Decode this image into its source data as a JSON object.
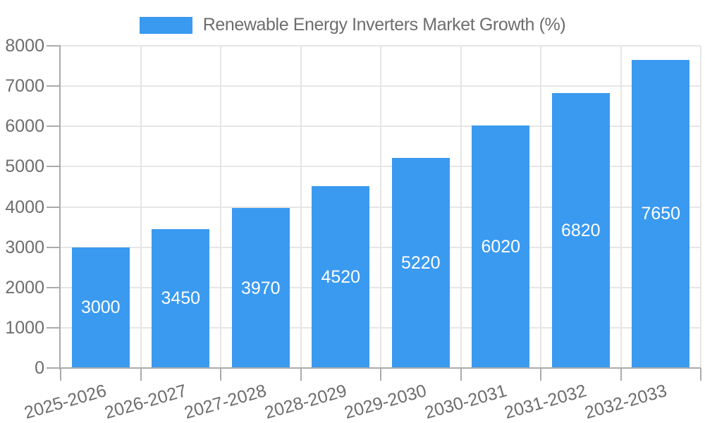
{
  "legend": {
    "label": "Renewable Energy Inverters Market Growth (%)"
  },
  "chart_data": {
    "type": "bar",
    "title": "Renewable Energy Inverters Market Growth (%)",
    "categories": [
      "2025-2026",
      "2026-2027",
      "2027-2028",
      "2028-2029",
      "2029-2030",
      "2030-2031",
      "2031-2032",
      "2032-2033"
    ],
    "values": [
      3000,
      3450,
      3970,
      4520,
      5220,
      6020,
      6820,
      7650
    ],
    "bar_value_labels": [
      "3000",
      "3450",
      "3970",
      "4520",
      "5220",
      "6020",
      "6820",
      "7650"
    ],
    "y_tick_labels": [
      "0",
      "1000",
      "2000",
      "3000",
      "4000",
      "5000",
      "6000",
      "7000",
      "8000"
    ],
    "xlabel": "",
    "ylabel": "",
    "ylim": [
      0,
      8000
    ],
    "ytick_step": 1000,
    "grid": true,
    "legend_position": "top-center",
    "x_label_rotation_deg": -16,
    "value_label_position": "middle-of-bar",
    "bar_color": "#3a9af0"
  },
  "colors": {
    "accent": "#3a9af0",
    "background": "#ffffff",
    "grid_line": "#e6e6e6",
    "axis_line": "#ababab",
    "tick_text": "#6d6d6d",
    "title_text": "#6d6d6d",
    "bar_label_text": "#ffffff"
  }
}
